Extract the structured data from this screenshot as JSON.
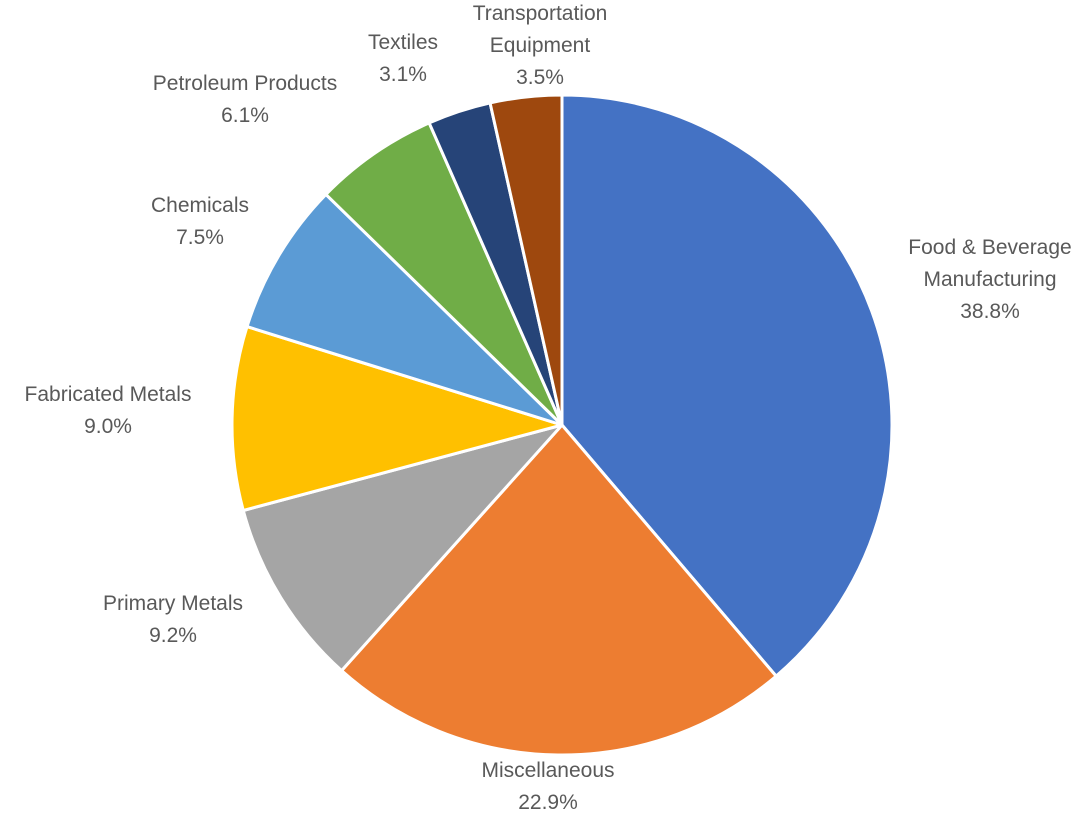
{
  "chart_data": {
    "type": "pie",
    "start_angle_deg": 0,
    "direction": "clockwise",
    "legend": "none",
    "slices": [
      {
        "label_lines": [
          "Food & Beverage",
          "Manufacturing"
        ],
        "value": 38.8,
        "value_label": "38.8%",
        "color": "#4472C4"
      },
      {
        "label_lines": [
          "Miscellaneous"
        ],
        "value": 22.9,
        "value_label": "22.9%",
        "color": "#ED7D31"
      },
      {
        "label_lines": [
          "Primary Metals"
        ],
        "value": 9.2,
        "value_label": "9.2%",
        "color": "#A5A5A5"
      },
      {
        "label_lines": [
          "Fabricated Metals"
        ],
        "value": 9.0,
        "value_label": "9.0%",
        "color": "#FFC000"
      },
      {
        "label_lines": [
          "Chemicals"
        ],
        "value": 7.5,
        "value_label": "7.5%",
        "color": "#5B9BD5"
      },
      {
        "label_lines": [
          "Petroleum Products"
        ],
        "value": 6.1,
        "value_label": "6.1%",
        "color": "#70AD47"
      },
      {
        "label_lines": [
          "Textiles"
        ],
        "value": 3.1,
        "value_label": "3.1%",
        "color": "#264478"
      },
      {
        "label_lines": [
          "Transportation",
          "Equipment"
        ],
        "value": 3.5,
        "value_label": "3.5%",
        "color": "#9E480E"
      }
    ]
  }
}
